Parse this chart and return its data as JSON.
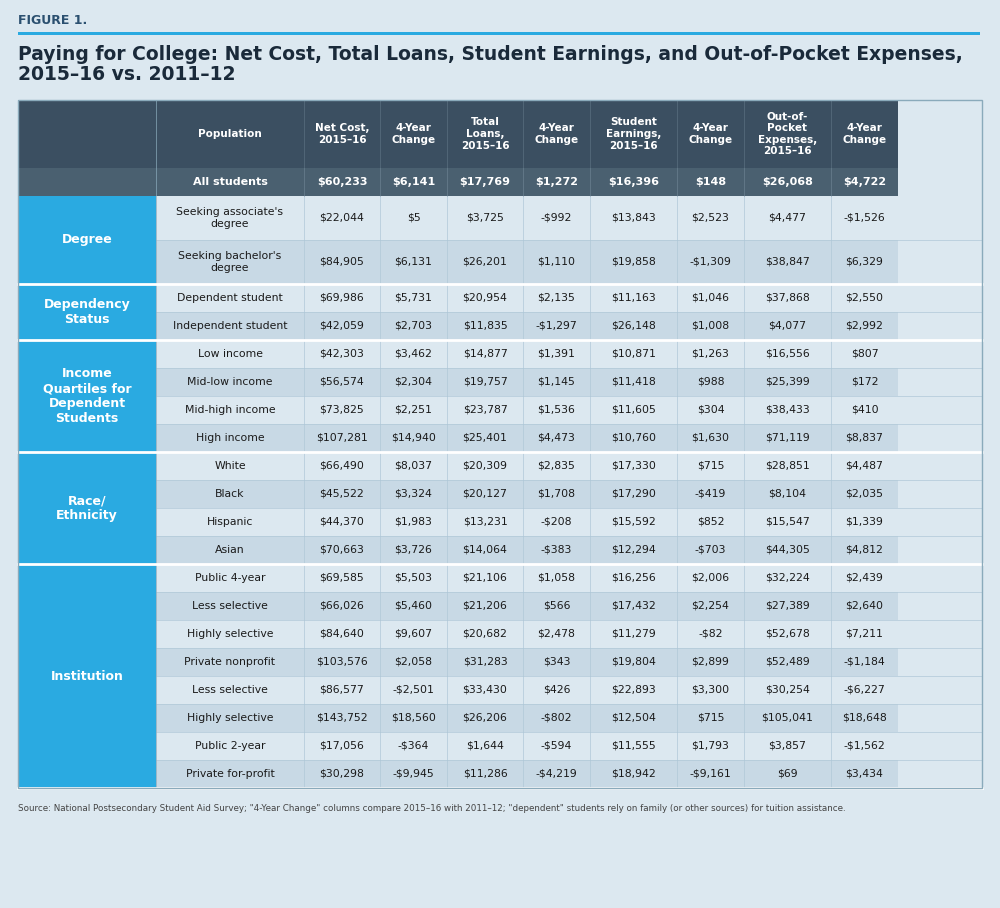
{
  "figure_label": "FIGURE 1.",
  "title_line1": "Paying for College: Net Cost, Total Loans, Student Earnings, and Out-of-Pocket Expenses,",
  "title_line2": "2015–16 vs. 2011–12",
  "source_text": "Source: National Postsecondary Student Aid Survey; \"4-Year Change\" columns compare 2015–16 with 2011–12; \"dependent\" students rely on family (or other sources) for tuition assistance.",
  "header_bg": "#3b4f61",
  "header_text": "#ffffff",
  "allstudents_bg": "#4a6070",
  "allstudents_text": "#ffffff",
  "category_bg": "#2aaae1",
  "category_text": "#ffffff",
  "row_light": "#dce8f0",
  "row_mid": "#c8d9e5",
  "bg_color": "#dce8f0",
  "separator_color": "#ffffff",
  "grid_color": "#b0c8d8",
  "col_headers": [
    "Population",
    "Net Cost,\n2015–16",
    "4-Year\nChange",
    "Total\nLoans,\n2015–16",
    "4-Year\nChange",
    "Student\nEarnings,\n2015–16",
    "4-Year\nChange",
    "Out-of-\nPocket\nExpenses,\n2015–16",
    "4-Year\nChange"
  ],
  "all_students_row": [
    "All students",
    "$60,233",
    "$6,141",
    "$17,769",
    "$1,272",
    "$16,396",
    "$148",
    "$26,068",
    "$4,722"
  ],
  "categories": [
    {
      "name": "Degree",
      "rows": [
        [
          "Seeking associate's\ndegree",
          "$22,044",
          "$5",
          "$3,725",
          "-$992",
          "$13,843",
          "$2,523",
          "$4,477",
          "-$1,526"
        ],
        [
          "Seeking bachelor's\ndegree",
          "$84,905",
          "$6,131",
          "$26,201",
          "$1,110",
          "$19,858",
          "-$1,309",
          "$38,847",
          "$6,329"
        ]
      ]
    },
    {
      "name": "Dependency\nStatus",
      "rows": [
        [
          "Dependent student",
          "$69,986",
          "$5,731",
          "$20,954",
          "$2,135",
          "$11,163",
          "$1,046",
          "$37,868",
          "$2,550"
        ],
        [
          "Independent student",
          "$42,059",
          "$2,703",
          "$11,835",
          "-$1,297",
          "$26,148",
          "$1,008",
          "$4,077",
          "$2,992"
        ]
      ]
    },
    {
      "name": "Income\nQuartiles for\nDependent\nStudents",
      "rows": [
        [
          "Low income",
          "$42,303",
          "$3,462",
          "$14,877",
          "$1,391",
          "$10,871",
          "$1,263",
          "$16,556",
          "$807"
        ],
        [
          "Mid-low income",
          "$56,574",
          "$2,304",
          "$19,757",
          "$1,145",
          "$11,418",
          "$988",
          "$25,399",
          "$172"
        ],
        [
          "Mid-high income",
          "$73,825",
          "$2,251",
          "$23,787",
          "$1,536",
          "$11,605",
          "$304",
          "$38,433",
          "$410"
        ],
        [
          "High income",
          "$107,281",
          "$14,940",
          "$25,401",
          "$4,473",
          "$10,760",
          "$1,630",
          "$71,119",
          "$8,837"
        ]
      ]
    },
    {
      "name": "Race/\nEthnicity",
      "rows": [
        [
          "White",
          "$66,490",
          "$8,037",
          "$20,309",
          "$2,835",
          "$17,330",
          "$715",
          "$28,851",
          "$4,487"
        ],
        [
          "Black",
          "$45,522",
          "$3,324",
          "$20,127",
          "$1,708",
          "$17,290",
          "-$419",
          "$8,104",
          "$2,035"
        ],
        [
          "Hispanic",
          "$44,370",
          "$1,983",
          "$13,231",
          "-$208",
          "$15,592",
          "$852",
          "$15,547",
          "$1,339"
        ],
        [
          "Asian",
          "$70,663",
          "$3,726",
          "$14,064",
          "-$383",
          "$12,294",
          "-$703",
          "$44,305",
          "$4,812"
        ]
      ]
    },
    {
      "name": "Institution",
      "rows": [
        [
          "Public 4-year",
          "$69,585",
          "$5,503",
          "$21,106",
          "$1,058",
          "$16,256",
          "$2,006",
          "$32,224",
          "$2,439"
        ],
        [
          "Less selective",
          "$66,026",
          "$5,460",
          "$21,206",
          "$566",
          "$17,432",
          "$2,254",
          "$27,389",
          "$2,640"
        ],
        [
          "Highly selective",
          "$84,640",
          "$9,607",
          "$20,682",
          "$2,478",
          "$11,279",
          "-$82",
          "$52,678",
          "$7,211"
        ],
        [
          "Private nonprofit",
          "$103,576",
          "$2,058",
          "$31,283",
          "$343",
          "$19,804",
          "$2,899",
          "$52,489",
          "-$1,184"
        ],
        [
          "Less selective",
          "$86,577",
          "-$2,501",
          "$33,430",
          "$426",
          "$22,893",
          "$3,300",
          "$30,254",
          "-$6,227"
        ],
        [
          "Highly selective",
          "$143,752",
          "$18,560",
          "$26,206",
          "-$802",
          "$12,504",
          "$715",
          "$105,041",
          "$18,648"
        ],
        [
          "Public 2-year",
          "$17,056",
          "-$364",
          "$1,644",
          "-$594",
          "$11,555",
          "$1,793",
          "$3,857",
          "-$1,562"
        ],
        [
          "Private for-profit",
          "$30,298",
          "-$9,945",
          "$11,286",
          "-$4,219",
          "$18,942",
          "-$9,161",
          "$69",
          "$3,434"
        ]
      ]
    }
  ]
}
